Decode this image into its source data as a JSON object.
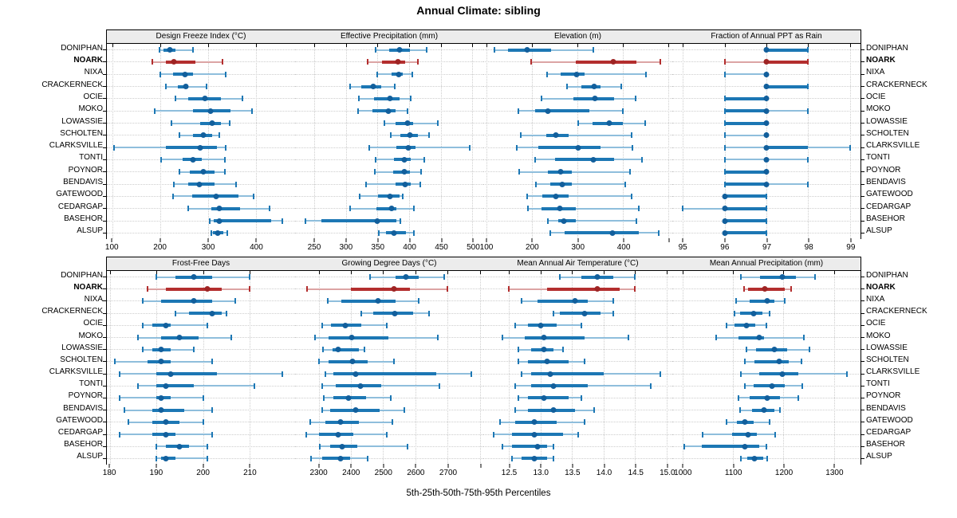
{
  "chart_data": {
    "type": "dotplot",
    "subtype": "percentile-range-dotplot",
    "title": "Annual Climate: sibling",
    "xlabel": "5th-25th-50th-75th-95th Percentiles",
    "percentile_levels": [
      5,
      25,
      50,
      75,
      95
    ],
    "legend_position": "none",
    "grid": "dotted",
    "highlight_site": "NOARK",
    "colors": {
      "site_main": "#1C77B4",
      "site_light": "#8FBEDC",
      "site_dot": "#125F9C",
      "highlight_main": "#B32E2E",
      "highlight_light": "#DCA4A4",
      "highlight_dot": "#9E2424",
      "strip_bg": "#ECECEC",
      "grid": "#CDCDCD",
      "border": "#000000"
    },
    "sites": [
      "DONIPHAN",
      "NOARK",
      "NIXA",
      "CRACKERNECK",
      "OCIE",
      "MOKO",
      "LOWASSIE",
      "SCHOLTEN",
      "CLARKSVILLE",
      "TONTI",
      "POYNOR",
      "BENDAVIS",
      "GATEWOOD",
      "CEDARGAP",
      "BASEHOR",
      "ALSUP"
    ],
    "panels": [
      {
        "title": "Design Freeze Index (°C)",
        "xlim": [
          88,
          482
        ],
        "ticks": [
          100,
          200,
          300,
          400
        ],
        "tick_labels": [
          "100",
          "200",
          "300",
          "400"
        ],
        "values": [
          [
            198,
            206,
            220,
            232,
            269
          ],
          [
            183,
            211,
            228,
            274,
            330
          ],
          [
            200,
            227,
            251,
            269,
            337
          ],
          [
            211,
            236,
            253,
            259,
            296
          ],
          [
            231,
            258,
            294,
            326,
            371
          ],
          [
            189,
            269,
            305,
            347,
            392
          ],
          [
            224,
            283,
            308,
            326,
            345
          ],
          [
            240,
            269,
            290,
            308,
            324
          ],
          [
            103,
            211,
            283,
            319,
            337
          ],
          [
            201,
            246,
            269,
            286,
            335
          ],
          [
            240,
            262,
            290,
            313,
            335
          ],
          [
            228,
            258,
            281,
            313,
            358
          ],
          [
            226,
            267,
            316,
            363,
            396
          ],
          [
            258,
            306,
            324,
            367,
            428
          ],
          [
            304,
            312,
            324,
            432,
            456
          ],
          [
            306,
            310,
            320,
            332,
            340
          ]
        ]
      },
      {
        "title": "Effective Precipitation (mm)",
        "xlim": [
          220,
          517
        ],
        "ticks": [
          250,
          300,
          350,
          400,
          450,
          500
        ],
        "tick_labels": [
          "250",
          "300",
          "350",
          "400",
          "450",
          "500"
        ],
        "values": [
          [
            347,
            368,
            385,
            401,
            428
          ],
          [
            335,
            357,
            382,
            394,
            414
          ],
          [
            349,
            372,
            383,
            390,
            405
          ],
          [
            307,
            324,
            343,
            356,
            377
          ],
          [
            321,
            345,
            370,
            385,
            402
          ],
          [
            320,
            342,
            367,
            379,
            397
          ],
          [
            361,
            379,
            397,
            406,
            445
          ],
          [
            371,
            386,
            401,
            414,
            432
          ],
          [
            337,
            380,
            399,
            410,
            495
          ],
          [
            347,
            376,
            393,
            403,
            424
          ],
          [
            346,
            375,
            393,
            401,
            419
          ],
          [
            332,
            378,
            394,
            403,
            418
          ],
          [
            322,
            351,
            370,
            385,
            390
          ],
          [
            307,
            348,
            372,
            380,
            407
          ],
          [
            236,
            261,
            349,
            380,
            386
          ],
          [
            352,
            363,
            376,
            395,
            407
          ]
        ]
      },
      {
        "title": "Elevation (m)",
        "xlim": [
          93,
          508
        ],
        "ticks": [
          100,
          200,
          300,
          400,
          500
        ],
        "tick_labels": [
          "100",
          "200",
          "300",
          "400",
          ""
        ],
        "values": [
          [
            117,
            147,
            190,
            242,
            334
          ],
          [
            198,
            296,
            378,
            429,
            481
          ],
          [
            233,
            262,
            298,
            316,
            450
          ],
          [
            277,
            308,
            337,
            351,
            396
          ],
          [
            220,
            290,
            338,
            380,
            427
          ],
          [
            170,
            207,
            234,
            326,
            399
          ],
          [
            302,
            333,
            370,
            399,
            448
          ],
          [
            176,
            232,
            252,
            280,
            418
          ],
          [
            166,
            214,
            302,
            351,
            421
          ],
          [
            207,
            250,
            335,
            380,
            442
          ],
          [
            172,
            234,
            263,
            288,
            415
          ],
          [
            208,
            240,
            267,
            287,
            405
          ],
          [
            189,
            222,
            253,
            281,
            418
          ],
          [
            191,
            221,
            261,
            296,
            434
          ],
          [
            234,
            257,
            269,
            296,
            430
          ],
          [
            240,
            271,
            376,
            434,
            479
          ]
        ]
      },
      {
        "title": "Fraction of Annual PPT as Rain",
        "xlim": [
          94.75,
          99.25
        ],
        "ticks": [
          95,
          96,
          97,
          98,
          99
        ],
        "tick_labels": [
          "95",
          "96",
          "97",
          "98",
          "99"
        ],
        "values": [
          [
            97,
            97,
            97,
            98,
            98
          ],
          [
            96,
            97,
            97,
            98,
            98
          ],
          [
            96,
            97,
            97,
            97,
            97
          ],
          [
            97,
            97,
            97,
            98,
            98
          ],
          [
            96,
            96,
            97,
            97,
            97
          ],
          [
            96,
            96,
            97,
            97,
            98
          ],
          [
            96,
            96,
            97,
            97,
            97
          ],
          [
            96,
            97,
            97,
            97,
            97
          ],
          [
            96,
            97,
            97,
            98,
            99
          ],
          [
            96,
            97,
            97,
            97,
            98
          ],
          [
            96,
            96,
            97,
            97,
            97
          ],
          [
            96,
            96,
            97,
            97,
            98
          ],
          [
            96,
            96,
            96,
            97,
            97
          ],
          [
            95,
            96,
            96,
            97,
            97
          ],
          [
            96,
            96,
            96,
            97,
            97
          ],
          [
            96,
            96,
            96,
            97,
            97
          ]
        ]
      },
      {
        "title": "Frost-Free Days",
        "xlim": [
          179.3,
          219.8
        ],
        "ticks": [
          180,
          190,
          200,
          210
        ],
        "tick_labels": [
          "180",
          "190",
          "200",
          "210"
        ],
        "values": [
          [
            190,
            194,
            198,
            202,
            210
          ],
          [
            188,
            192,
            201,
            204,
            210
          ],
          [
            187,
            191,
            198,
            202,
            207
          ],
          [
            194,
            197,
            202,
            204,
            205
          ],
          [
            187,
            189,
            192,
            193,
            201
          ],
          [
            186,
            191,
            195,
            199,
            206
          ],
          [
            187,
            189,
            191,
            193,
            198
          ],
          [
            181,
            188,
            191,
            193,
            202
          ],
          [
            182,
            190,
            193,
            203,
            217
          ],
          [
            186,
            190,
            192,
            198,
            211
          ],
          [
            182,
            190,
            191,
            193,
            200
          ],
          [
            183,
            189,
            191,
            196,
            202
          ],
          [
            184,
            189,
            192,
            195,
            200
          ],
          [
            182,
            189,
            192,
            194,
            202
          ],
          [
            190,
            192,
            195,
            197,
            201
          ],
          [
            190,
            191,
            192,
            194,
            201
          ]
        ]
      },
      {
        "title": "Growing Degree Days (°C)",
        "xlim": [
          2227,
          2811
        ],
        "ticks": [
          2300,
          2400,
          2500,
          2600,
          2700,
          2800
        ],
        "tick_labels": [
          "2300",
          "2400",
          "2500",
          "2600",
          "2700",
          ""
        ],
        "values": [
          [
            2460,
            2540,
            2570,
            2610,
            2690
          ],
          [
            2265,
            2400,
            2535,
            2584,
            2700
          ],
          [
            2328,
            2371,
            2484,
            2539,
            2611
          ],
          [
            2433,
            2470,
            2537,
            2593,
            2642
          ],
          [
            2312,
            2339,
            2384,
            2433,
            2511
          ],
          [
            2288,
            2330,
            2402,
            2517,
            2670
          ],
          [
            2314,
            2343,
            2361,
            2425,
            2443
          ],
          [
            2302,
            2330,
            2406,
            2453,
            2535
          ],
          [
            2320,
            2345,
            2414,
            2665,
            2773
          ],
          [
            2312,
            2353,
            2430,
            2494,
            2675
          ],
          [
            2316,
            2345,
            2394,
            2447,
            2525
          ],
          [
            2312,
            2337,
            2416,
            2490,
            2566
          ],
          [
            2273,
            2320,
            2367,
            2425,
            2529
          ],
          [
            2261,
            2302,
            2361,
            2408,
            2512
          ],
          [
            2304,
            2337,
            2373,
            2419,
            2575
          ],
          [
            2277,
            2312,
            2367,
            2398,
            2452
          ]
        ]
      },
      {
        "title": "Mean Annual Air Temperature (°C)",
        "xlim": [
          12.09,
          15.09
        ],
        "ticks": [
          12.5,
          13.0,
          13.5,
          14.0,
          14.5,
          15.0
        ],
        "tick_labels": [
          "12.5",
          "13.0",
          "13.5",
          "14.0",
          "14.5",
          "15.0"
        ],
        "values": [
          [
            13.3,
            13.65,
            13.9,
            14.15,
            14.5
          ],
          [
            12.5,
            13.1,
            13.9,
            14.25,
            14.5
          ],
          [
            12.7,
            12.95,
            13.55,
            13.75,
            14.15
          ],
          [
            13.2,
            13.3,
            13.7,
            13.95,
            14.15
          ],
          [
            12.6,
            12.8,
            13.0,
            13.25,
            13.65
          ],
          [
            12.4,
            12.75,
            13.05,
            13.7,
            14.4
          ],
          [
            12.65,
            12.85,
            13.05,
            13.2,
            13.35
          ],
          [
            12.65,
            12.8,
            13.1,
            13.45,
            13.7
          ],
          [
            12.7,
            12.85,
            13.15,
            14.0,
            14.9
          ],
          [
            12.6,
            12.85,
            13.2,
            13.75,
            14.75
          ],
          [
            12.65,
            12.8,
            13.05,
            13.45,
            13.65
          ],
          [
            12.6,
            12.8,
            13.2,
            13.55,
            13.85
          ],
          [
            12.35,
            12.6,
            12.9,
            13.25,
            13.7
          ],
          [
            12.25,
            12.55,
            12.9,
            13.35,
            13.6
          ],
          [
            12.4,
            12.55,
            12.95,
            13.1,
            13.2
          ],
          [
            12.55,
            12.7,
            12.9,
            13.1,
            13.2
          ]
        ]
      },
      {
        "title": "Mean Annual Precipitation (mm)",
        "xlim": [
          979,
          1353
        ],
        "ticks": [
          1000,
          1100,
          1200,
          1300
        ],
        "tick_labels": [
          "1000",
          "1100",
          "1200",
          "1300"
        ],
        "values": [
          [
            1116,
            1154,
            1198,
            1224,
            1263
          ],
          [
            1121,
            1130,
            1163,
            1202,
            1215
          ],
          [
            1105,
            1133,
            1168,
            1182,
            1203
          ],
          [
            1102,
            1114,
            1140,
            1158,
            1172
          ],
          [
            1087,
            1103,
            1126,
            1144,
            1166
          ],
          [
            1066,
            1111,
            1151,
            1161,
            1240
          ],
          [
            1126,
            1145,
            1182,
            1207,
            1251
          ],
          [
            1123,
            1142,
            1191,
            1211,
            1235
          ],
          [
            1116,
            1151,
            1198,
            1230,
            1326
          ],
          [
            1123,
            1140,
            1177,
            1203,
            1237
          ],
          [
            1111,
            1133,
            1168,
            1193,
            1230
          ],
          [
            1114,
            1137,
            1161,
            1182,
            1193
          ],
          [
            1087,
            1108,
            1124,
            1140,
            1172
          ],
          [
            1040,
            1098,
            1130,
            1147,
            1184
          ],
          [
            1003,
            1038,
            1124,
            1151,
            1166
          ],
          [
            1116,
            1128,
            1142,
            1159,
            1168
          ]
        ]
      }
    ]
  }
}
